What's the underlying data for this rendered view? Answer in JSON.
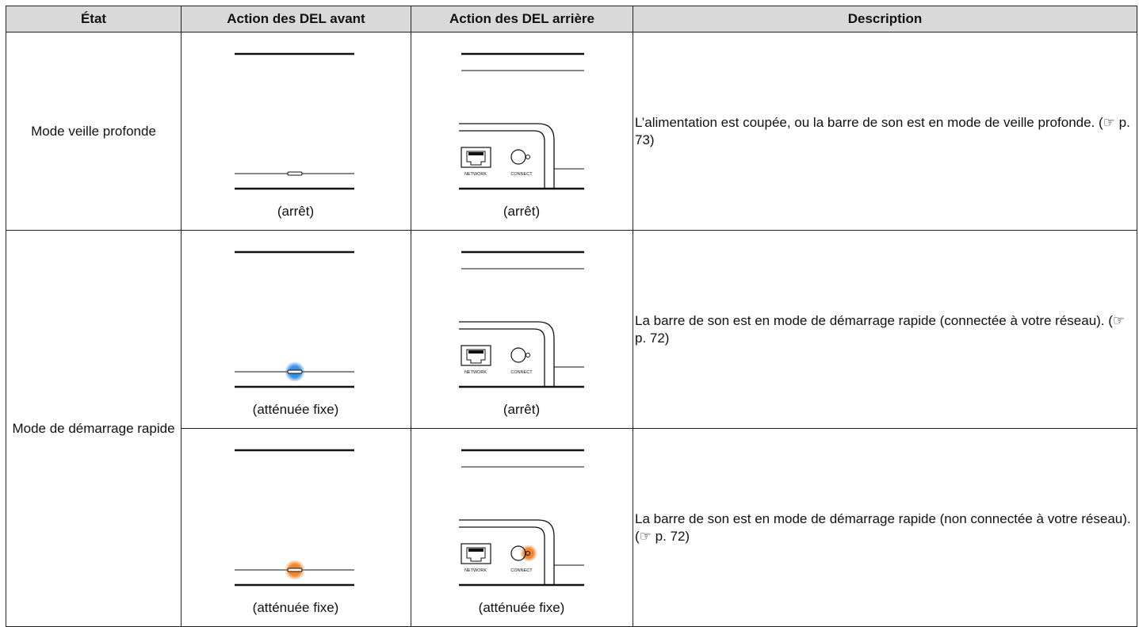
{
  "header": [
    "État",
    "Action des DEL avant",
    "Action des DEL arrière",
    "Description"
  ],
  "rear_panel_labels": {
    "network": "NETWORK",
    "connect": "CONNECT"
  },
  "groups": [
    {
      "state": "Mode veille profonde",
      "rows": [
        {
          "front_caption": "(arrêt)",
          "front_led": null,
          "rear_caption": "(arrêt)",
          "rear_led": null,
          "description": "L’alimentation est coupée, ou la barre de son est en mode de veille profonde.  (☞ p. 73)"
        }
      ]
    },
    {
      "state": "Mode de démarrage rapide",
      "rows": [
        {
          "front_caption": "(atténuée fixe)",
          "front_led": "#2a86e0",
          "rear_caption": "(arrêt)",
          "rear_led": null,
          "description": "La barre de son est en mode de démarrage rapide (connectée à votre réseau).  (☞ p. 72)"
        },
        {
          "front_caption": "(atténuée fixe)",
          "front_led": "#f07a1a",
          "rear_caption": "(atténuée fixe)",
          "rear_led": "#f07a1a",
          "description": "La barre de son est en mode de démarrage rapide (non connectée à votre réseau).  (☞ p. 72)"
        }
      ]
    }
  ]
}
